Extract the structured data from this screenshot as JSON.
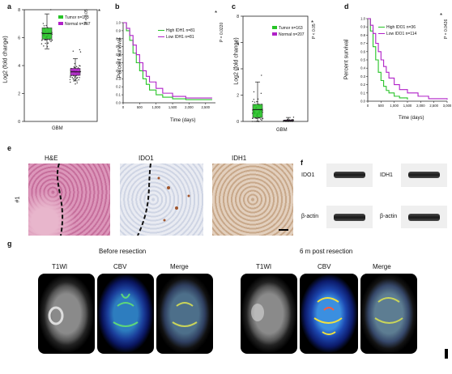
{
  "panels": {
    "a": {
      "letter": "a",
      "ylabel": "Log2 (fold change)",
      "xlabel": "GBM",
      "legend": [
        {
          "label": "Tumor n=163",
          "color": "#27c427"
        },
        {
          "label": "Normal n=207",
          "color": "#b020c8"
        }
      ],
      "pvalue": "P < 0.05",
      "star": "*",
      "yticks": [
        "0",
        "2",
        "4",
        "6",
        "8"
      ]
    },
    "b": {
      "letter": "b",
      "ylabel": "Percent survival",
      "xlabel": "Time (days)",
      "legend": [
        {
          "label": "High IDH1 n=81",
          "color": "#27c427"
        },
        {
          "label": "Low IDH1 n=81",
          "color": "#b020c8"
        }
      ],
      "pvalue": "P = 0.0220",
      "star": "*",
      "yticks": [
        "0.0",
        "0.1",
        "0.2",
        "0.3",
        "0.4",
        "0.5",
        "0.6",
        "0.7",
        "0.8",
        "0.9",
        "1.0"
      ],
      "xticks": [
        "0",
        "500",
        "1,000",
        "1,500",
        "2,000",
        "2,500"
      ]
    },
    "c": {
      "letter": "c",
      "ylabel": "Log2 (fold change)",
      "xlabel": "GBM",
      "legend": [
        {
          "label": "Tumor n=163",
          "color": "#27c427"
        },
        {
          "label": "Normal n=207",
          "color": "#b020c8"
        }
      ],
      "pvalue": "P < 0.05",
      "star": "*",
      "yticks": [
        "0",
        "2",
        "4",
        "6",
        "8"
      ]
    },
    "d": {
      "letter": "d",
      "ylabel": "Percent survival",
      "xlabel": "Time (days)",
      "legend": [
        {
          "label": "High IDO1 n=36",
          "color": "#27c427"
        },
        {
          "label": "Low IDO1 n=114",
          "color": "#b020c8"
        }
      ],
      "pvalue": "P = 0.0426",
      "star": "*",
      "yticks": [
        "0.0",
        "0.1",
        "0.2",
        "0.3",
        "0.4",
        "0.5",
        "0.6",
        "0.7",
        "0.8",
        "0.9",
        "1.0"
      ],
      "xticks": [
        "0",
        "500",
        "1,000",
        "1,500",
        "2,000",
        "2,500",
        "3,000"
      ]
    },
    "e": {
      "letter": "e",
      "titles": [
        "H&E",
        "IDO1",
        "IDH1"
      ],
      "row_label": "#1"
    },
    "f": {
      "letter": "f",
      "labels": [
        "IDO1",
        "IDH1",
        "β-actin",
        "β-actin"
      ]
    },
    "g": {
      "letter": "g",
      "before": "Before resection",
      "after": "6 m post resection",
      "cols": [
        "T1WI",
        "CBV",
        "Merge",
        "T1WI",
        "CBV",
        "Merge"
      ]
    }
  },
  "chart_data": [
    {
      "type": "box",
      "title": "",
      "xlabel": "GBM",
      "ylabel": "Log2 (fold change)",
      "ylim": [
        0,
        8
      ],
      "series": [
        {
          "name": "Tumor n=163",
          "q1": 5.9,
          "median": 6.3,
          "q3": 6.7,
          "whisker_low": 5.2,
          "whisker_high": 7.7
        },
        {
          "name": "Normal n=207",
          "q1": 3.3,
          "median": 3.55,
          "q3": 3.8,
          "whisker_low": 2.9,
          "whisker_high": 4.5
        }
      ]
    },
    {
      "type": "line",
      "title": "",
      "xlabel": "Time (days)",
      "ylabel": "Percent survival",
      "xlim": [
        0,
        2800
      ],
      "ylim": [
        0,
        1.0
      ],
      "series": [
        {
          "name": "High IDH1 n=81",
          "x": [
            0,
            100,
            200,
            300,
            400,
            500,
            600,
            700,
            800,
            1000,
            1200,
            1500,
            1900,
            2700
          ],
          "y": [
            1.0,
            0.9,
            0.78,
            0.62,
            0.5,
            0.4,
            0.3,
            0.23,
            0.16,
            0.1,
            0.07,
            0.05,
            0.04,
            0.04
          ]
        },
        {
          "name": "Low IDH1 n=81",
          "x": [
            0,
            100,
            200,
            300,
            400,
            500,
            600,
            700,
            800,
            1000,
            1200,
            1500,
            1900,
            2700
          ],
          "y": [
            1.0,
            0.93,
            0.84,
            0.72,
            0.6,
            0.5,
            0.4,
            0.33,
            0.26,
            0.18,
            0.12,
            0.08,
            0.06,
            0.06
          ]
        }
      ]
    },
    {
      "type": "box",
      "title": "",
      "xlabel": "GBM",
      "ylabel": "Log2 (fold change)",
      "ylim": [
        0,
        8
      ],
      "series": [
        {
          "name": "Tumor n=163",
          "q1": 0.3,
          "median": 0.9,
          "q3": 1.3,
          "whisker_low": 0.0,
          "whisker_high": 3.0
        },
        {
          "name": "Normal n=207",
          "q1": 0.02,
          "median": 0.05,
          "q3": 0.1,
          "whisker_low": 0.0,
          "whisker_high": 0.3
        }
      ]
    },
    {
      "type": "line",
      "title": "",
      "xlabel": "Time (days)",
      "ylabel": "Percent survival",
      "xlim": [
        0,
        3000
      ],
      "ylim": [
        0,
        1.0
      ],
      "series": [
        {
          "name": "High IDO1 n=36",
          "x": [
            0,
            100,
            200,
            300,
            400,
            500,
            600,
            700,
            800,
            1000,
            1200,
            1500
          ],
          "y": [
            1.0,
            0.85,
            0.66,
            0.5,
            0.35,
            0.25,
            0.18,
            0.13,
            0.1,
            0.06,
            0.04,
            0.02
          ]
        },
        {
          "name": "Low IDO1 n=114",
          "x": [
            0,
            100,
            200,
            300,
            400,
            500,
            600,
            700,
            800,
            1000,
            1200,
            1500,
            1900,
            2300,
            3000
          ],
          "y": [
            1.0,
            0.92,
            0.82,
            0.7,
            0.6,
            0.5,
            0.42,
            0.35,
            0.28,
            0.2,
            0.14,
            0.1,
            0.06,
            0.03,
            0.02
          ]
        }
      ]
    }
  ]
}
